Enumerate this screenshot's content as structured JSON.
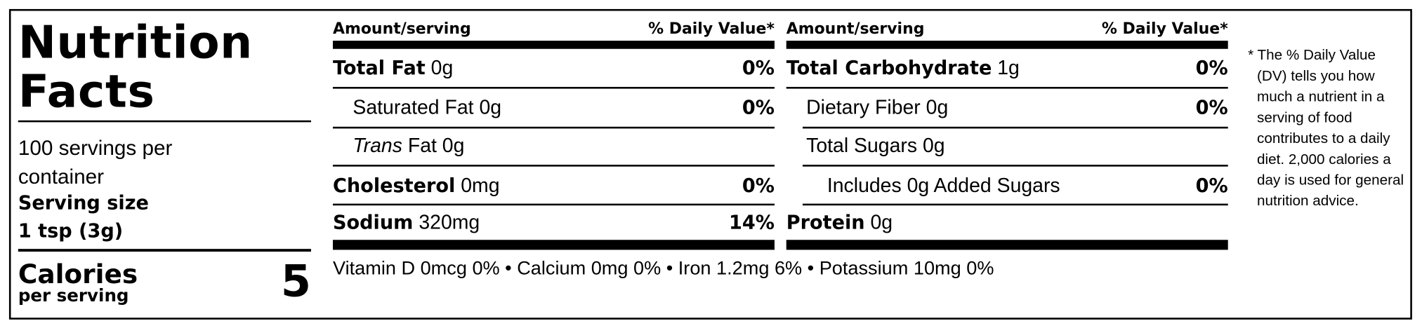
{
  "title": "Nutrition Facts",
  "servings": "100 servings per container",
  "serving_size_label": "Serving size",
  "serving_size": "1 tsp (3g)",
  "calories_label": "Calories",
  "calories_sub": "per serving",
  "calories": "5",
  "columns": [
    {
      "header_left": "Amount/serving",
      "header_right": "% Daily Value*",
      "rows": [
        {
          "name": "Total Fat",
          "amount": "0g",
          "dv": "0%"
        },
        {
          "name": "Saturated Fat",
          "amount": "0g",
          "dv": "0%"
        },
        {
          "name_prefix": "Trans",
          "name": "Fat",
          "amount": "0g"
        },
        {
          "name": "Cholesterol",
          "amount": "0mg",
          "dv": "0%"
        },
        {
          "name": "Sodium",
          "amount": "320mg",
          "dv": "14%"
        }
      ]
    },
    {
      "header_left": "Amount/serving",
      "header_right": "% Daily Value*",
      "rows": [
        {
          "name": "Total Carbohydrate",
          "amount": "1g",
          "dv": "0%"
        },
        {
          "name": "Dietary Fiber",
          "amount": "0g",
          "dv": "0%"
        },
        {
          "name": "Total Sugars",
          "amount": "0g"
        },
        {
          "name": "Includes",
          "amount": "0g",
          "suffix": "Added Sugars",
          "dv": "0%"
        },
        {
          "name": "Protein",
          "amount": "0g"
        }
      ]
    }
  ],
  "vitamins": "Vitamin D 0mcg 0% • Calcium 0mg 0% • Iron 1.2mg 6% • Potassium 10mg 0%",
  "footnote": "* The % Daily Value (DV) tells you how much a nutrient in a serving of food contributes to a daily diet. 2,000 calories a day is used for general nutrition advice."
}
